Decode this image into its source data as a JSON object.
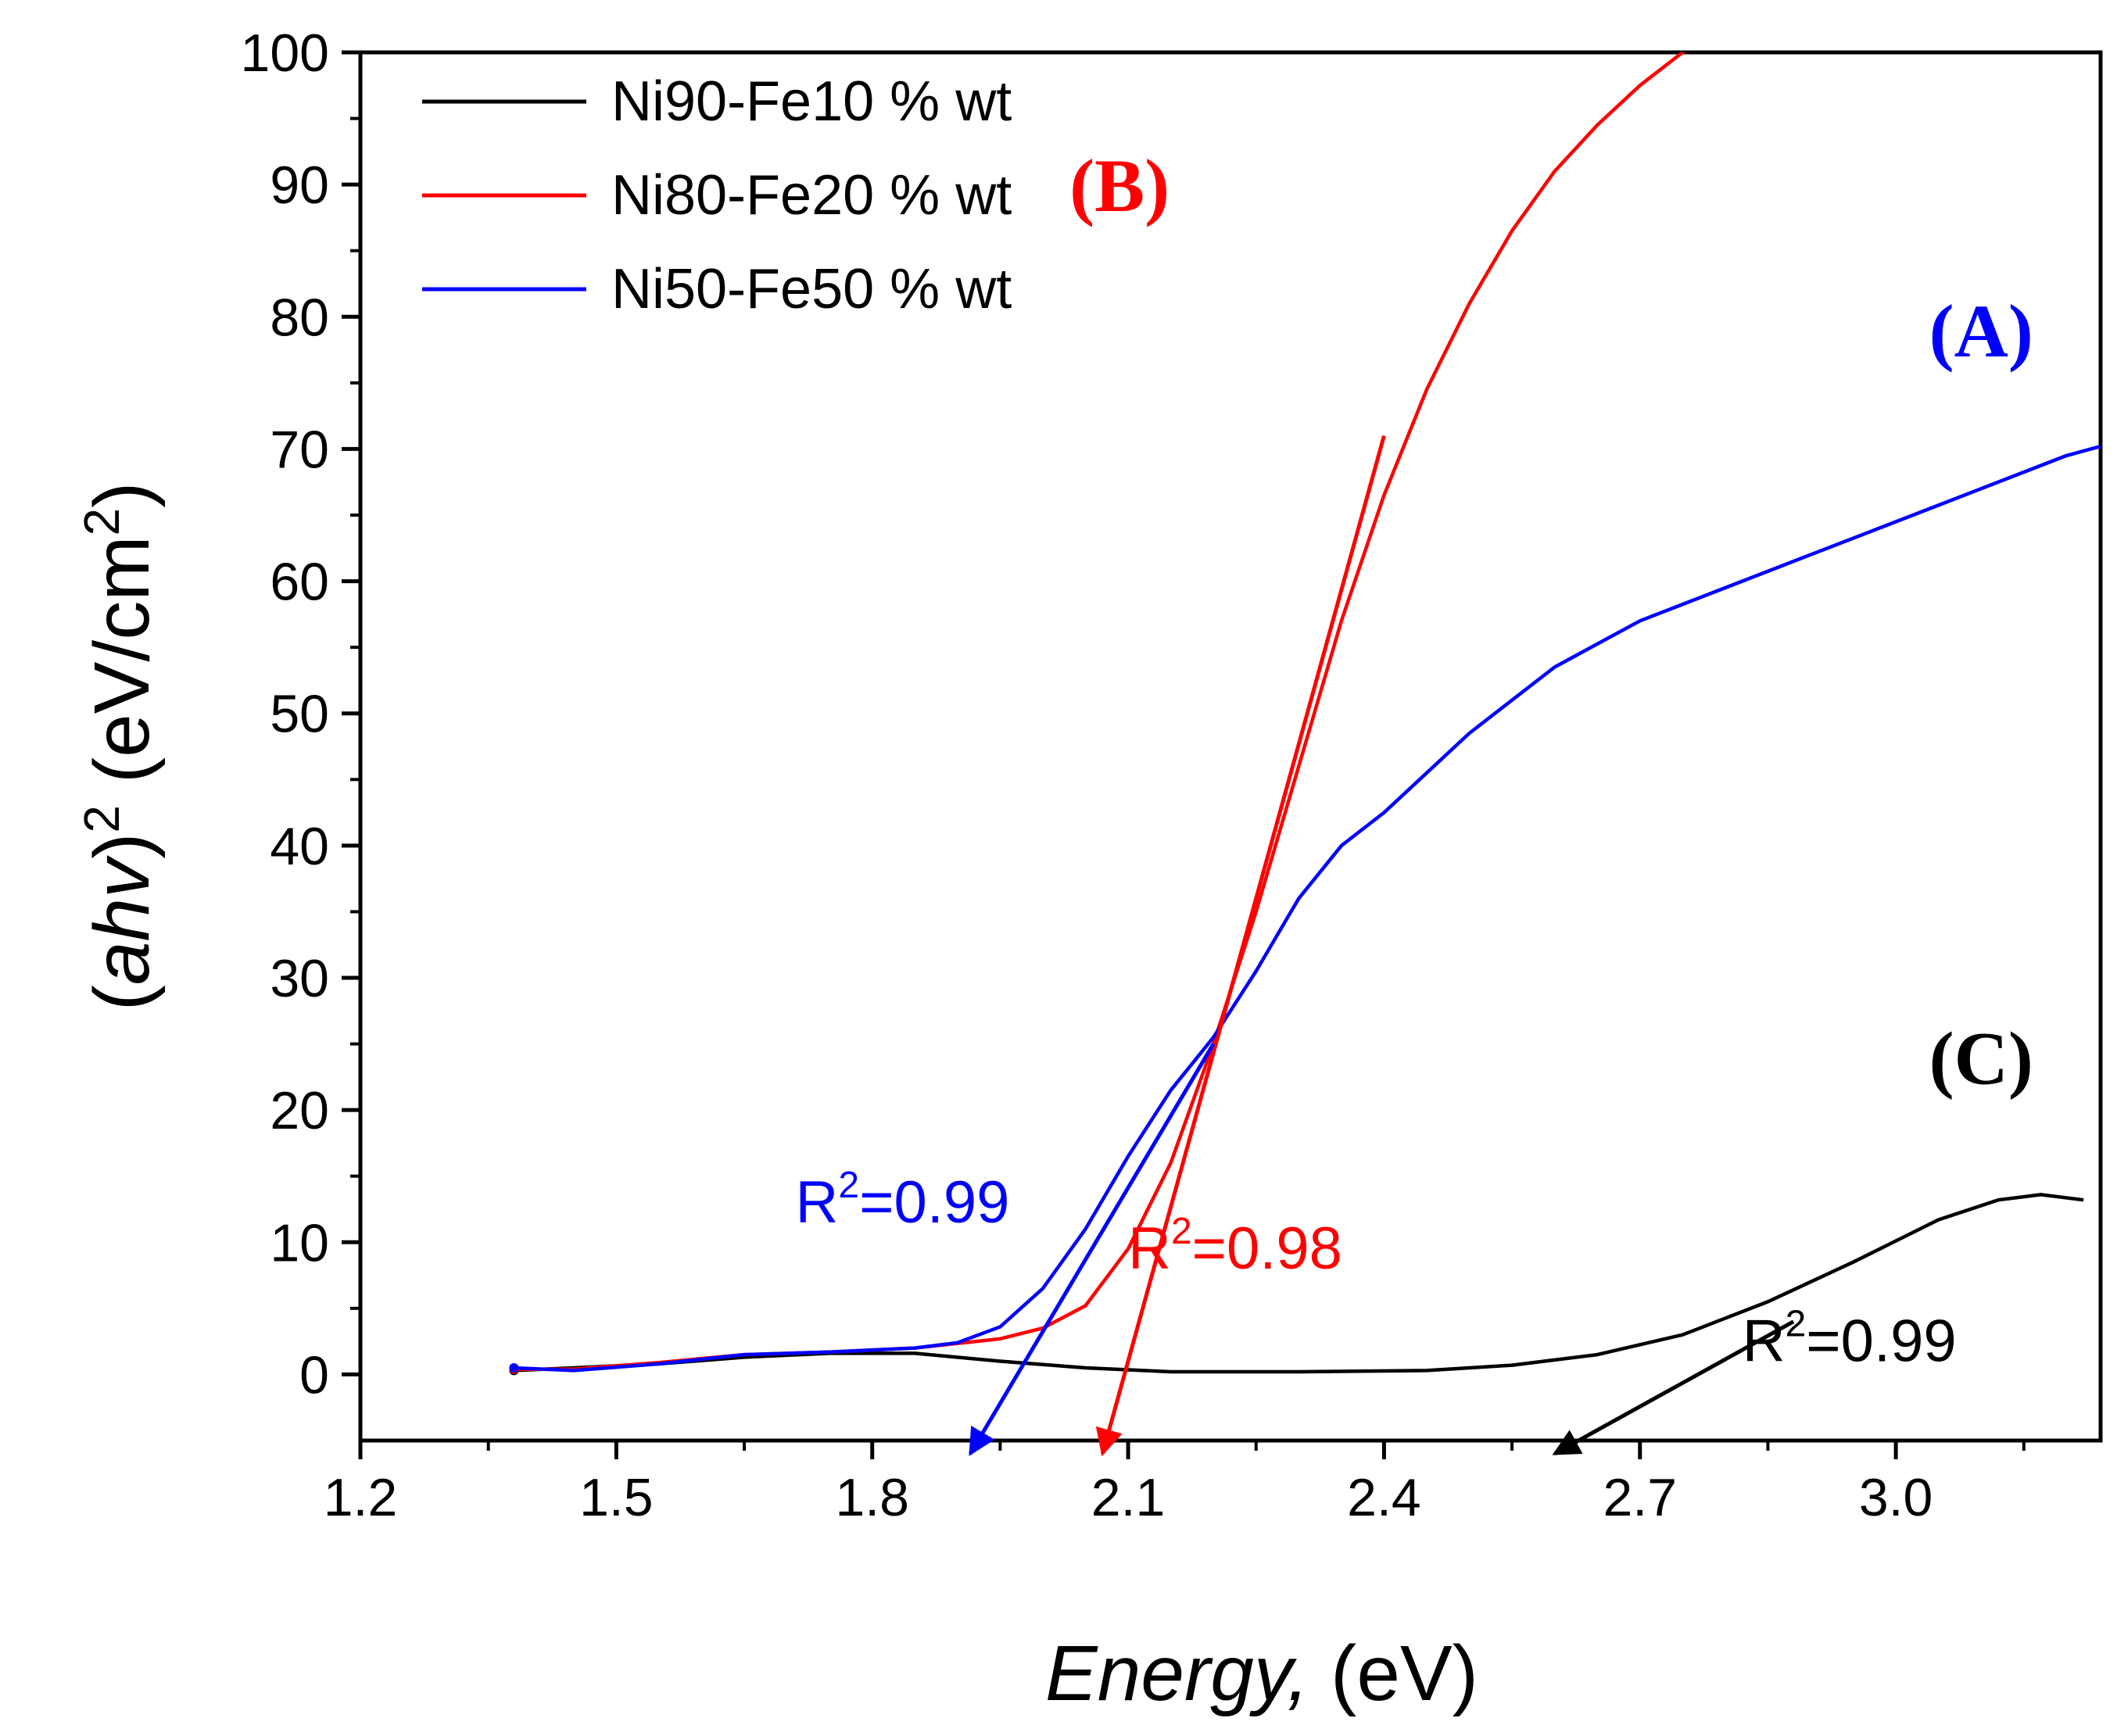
{
  "chart_data": {
    "type": "line",
    "xlabel": "Energy, (eV)",
    "ylabel": "(ahv)2 (eV/cm2)",
    "xlim": [
      1.2,
      3.24
    ],
    "ylim": [
      -5,
      100
    ],
    "x_ticks": [
      "1.2",
      "1.5",
      "1.8",
      "2.1",
      "2.4",
      "2.7",
      "3.0"
    ],
    "y_ticks": [
      "0",
      "10",
      "20",
      "30",
      "40",
      "50",
      "60",
      "70",
      "80",
      "90",
      "100"
    ],
    "grid": false,
    "legend_position": "top-left",
    "series": [
      {
        "name": "Ni90-Fe10 % wt",
        "color": "#000000",
        "x": [
          1.38,
          1.45,
          1.55,
          1.65,
          1.75,
          1.85,
          1.95,
          2.05,
          2.15,
          2.3,
          2.45,
          2.55,
          2.65,
          2.75,
          2.85,
          2.95,
          3.05,
          3.12,
          3.17,
          3.22
        ],
        "y": [
          0.3,
          0.5,
          0.8,
          1.3,
          1.6,
          1.6,
          1.0,
          0.5,
          0.2,
          0.2,
          0.3,
          0.7,
          1.5,
          3.0,
          5.5,
          8.5,
          11.7,
          13.2,
          13.6,
          13.2
        ]
      },
      {
        "name": "Ni80-Fe20 % wt",
        "color": "#ff0000",
        "x": [
          1.38,
          1.45,
          1.55,
          1.65,
          1.75,
          1.85,
          1.95,
          2.0,
          2.05,
          2.1,
          2.15,
          2.2,
          2.25,
          2.3,
          2.35,
          2.4,
          2.45,
          2.5,
          2.55,
          2.6,
          2.65,
          2.7,
          2.75,
          2.8
        ],
        "y": [
          0.4,
          0.4,
          0.9,
          1.5,
          1.7,
          2.0,
          2.7,
          3.5,
          5.2,
          9.5,
          16.0,
          25.0,
          35.0,
          46.0,
          57.0,
          66.5,
          74.5,
          81.0,
          86.5,
          91.0,
          94.5,
          97.5,
          100.0,
          102.0
        ]
      },
      {
        "name": "Ni50-Fe50 % wt",
        "color": "#0000ff",
        "x": [
          1.38,
          1.45,
          1.55,
          1.65,
          1.75,
          1.85,
          1.9,
          1.95,
          2.0,
          2.05,
          2.1,
          2.15,
          2.2,
          2.25,
          2.3,
          2.35,
          2.4,
          2.5,
          2.6,
          2.7,
          2.8,
          2.9,
          3.0,
          3.1,
          3.2,
          3.24
        ],
        "y": [
          0.5,
          0.3,
          0.8,
          1.5,
          1.7,
          2.0,
          2.4,
          3.6,
          6.5,
          11.0,
          16.5,
          21.5,
          25.5,
          30.5,
          36.0,
          40.0,
          42.5,
          48.5,
          53.5,
          57.0,
          59.5,
          62.0,
          64.5,
          67.0,
          69.5,
          70.2
        ]
      }
    ],
    "fit_lines": [
      {
        "color": "#ff0000",
        "x": [
          2.4,
          2.07
        ],
        "y": [
          71,
          -6
        ]
      },
      {
        "color": "#0000ff",
        "x": [
          2.2,
          1.915
        ],
        "y": [
          25,
          -6
        ]
      },
      {
        "color": "#000000",
        "x": [
          2.88,
          2.6
        ],
        "y": [
          4,
          -6
        ]
      }
    ],
    "annotations": [
      {
        "text": "(B)",
        "color": "#ff0000",
        "style": "serif-bold",
        "x": 2.09,
        "y": 88
      },
      {
        "text": "(A)",
        "color": "#0000ff",
        "style": "serif-bold",
        "x": 3.1,
        "y": 77
      },
      {
        "text": "(C)",
        "color": "#000000",
        "style": "serif-bold",
        "x": 3.1,
        "y": 22
      },
      {
        "base": "R",
        "sup": "2",
        "value": "=0.99",
        "color": "#0000ff",
        "x": 1.71,
        "y": 11.5
      },
      {
        "base": "R",
        "sup": "2",
        "value": "=0.98",
        "color": "#ff0000",
        "x": 2.1,
        "y": 8.0
      },
      {
        "base": "R",
        "sup": "2",
        "value": "=0.99",
        "color": "#000000",
        "x": 2.82,
        "y": 1.0
      }
    ]
  }
}
